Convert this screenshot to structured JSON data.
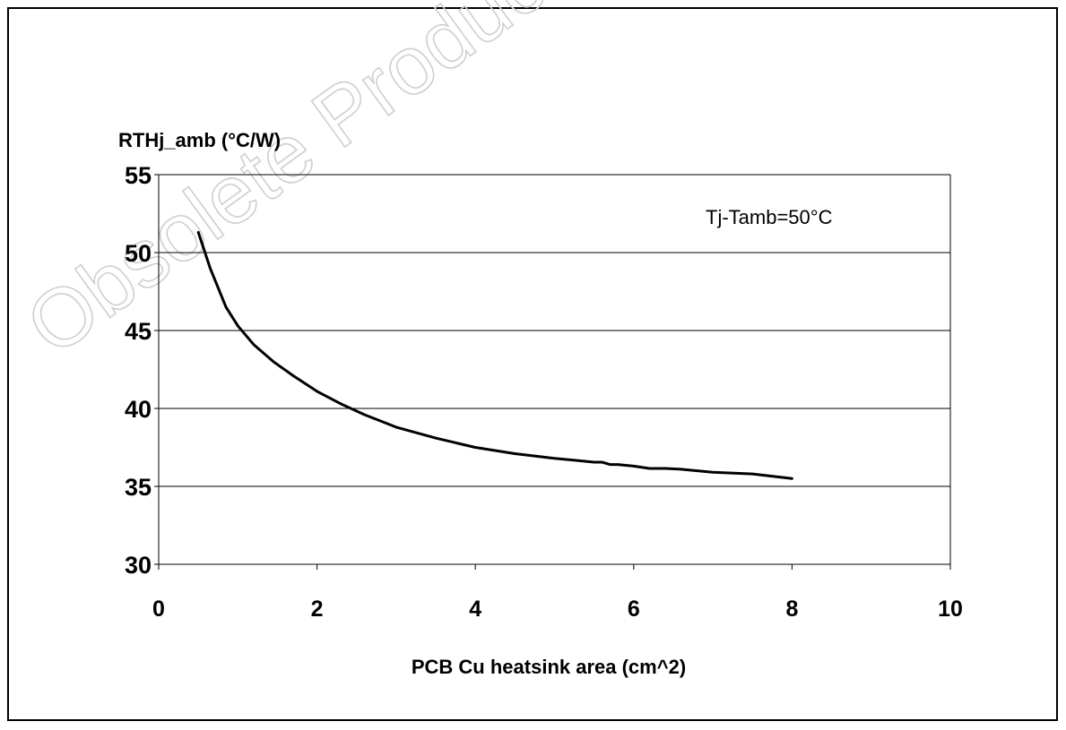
{
  "watermark": {
    "text": "Obsolete Product(s)"
  },
  "chart_data": {
    "type": "line",
    "ylabel": "RTHj_amb (°C/W)",
    "xlabel": "PCB Cu heatsink area (cm^2)",
    "annotation": "Tj-Tamb=50°C",
    "xlim": [
      0,
      10
    ],
    "ylim": [
      30,
      55
    ],
    "x_ticks": [
      "0",
      "2",
      "4",
      "6",
      "8",
      "10"
    ],
    "y_ticks": [
      "30",
      "35",
      "40",
      "45",
      "50",
      "55"
    ],
    "grid": "horizontal",
    "series": [
      {
        "x": [
          0.5,
          0.65,
          0.85,
          1.0,
          1.2,
          1.45,
          1.7,
          2.0,
          2.3,
          2.6,
          3.0,
          3.5,
          4.0,
          4.5,
          5.0,
          5.5,
          5.6,
          5.7,
          5.8,
          6.0,
          6.2,
          6.4,
          6.6,
          7.0,
          7.5,
          8.0
        ],
        "y": [
          51.3,
          49.0,
          46.5,
          45.3,
          44.1,
          43.0,
          42.1,
          41.1,
          40.3,
          39.6,
          38.8,
          38.1,
          37.5,
          37.1,
          36.8,
          36.55,
          36.55,
          36.4,
          36.4,
          36.3,
          36.15,
          36.15,
          36.1,
          35.9,
          35.8,
          35.5
        ],
        "color": "#000000"
      }
    ]
  }
}
